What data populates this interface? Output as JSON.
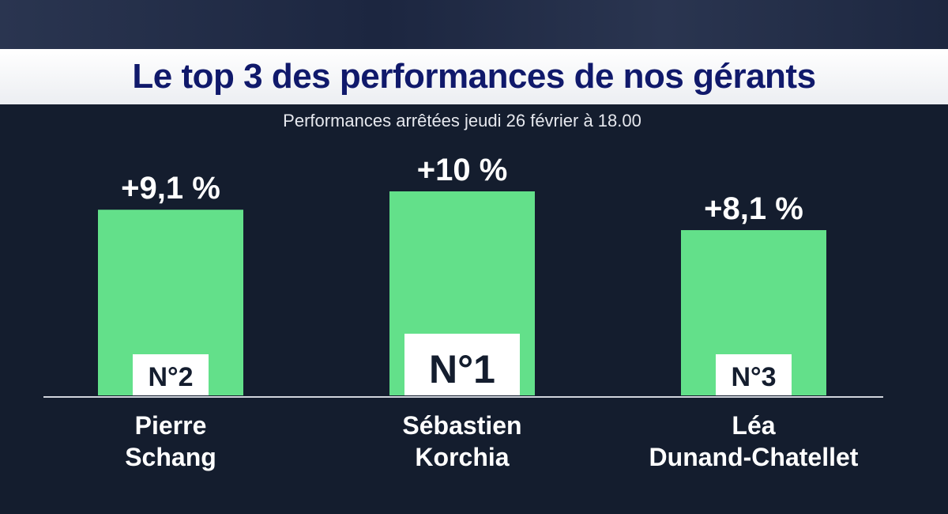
{
  "header": {
    "title": "Le top 3 des performances de nos gérants",
    "subtitle": "Performances arrêtées jeudi 26 février à 18.00"
  },
  "colors": {
    "bar": "#63e08a",
    "background": "#141d2e",
    "title_text": "#10196b"
  },
  "chart_data": {
    "type": "bar",
    "categories": [
      "Pierre Schang",
      "Sébastien Korchia",
      "Léa Dunand-Chatellet"
    ],
    "name_lines": [
      [
        "Pierre",
        "Schang"
      ],
      [
        "Sébastien",
        "Korchia"
      ],
      [
        "Léa",
        "Dunand-Chatellet"
      ]
    ],
    "values": [
      9.1,
      10,
      8.1
    ],
    "value_labels": [
      "+9,1 %",
      "+10 %",
      "+8,1 %"
    ],
    "ranks": [
      "N°2",
      "N°1",
      "N°3"
    ],
    "title": "Le top 3 des performances de nos gérants",
    "subtitle": "Performances arrêtées jeudi 26 février à 18.00",
    "xlabel": "",
    "ylabel": "",
    "ylim": [
      0,
      10
    ],
    "grid": false
  }
}
